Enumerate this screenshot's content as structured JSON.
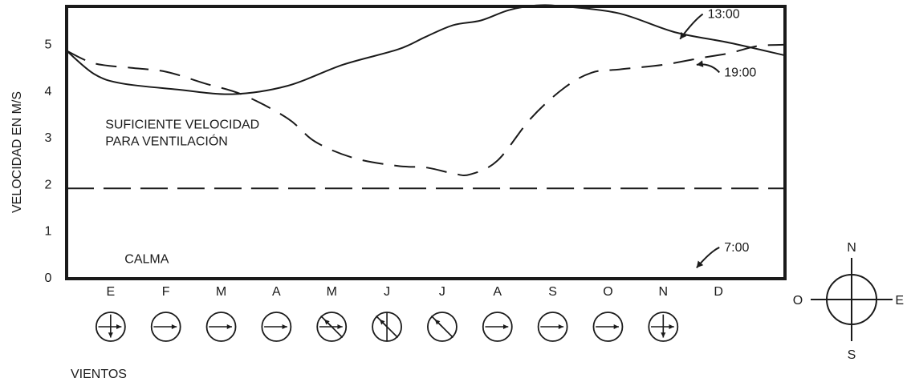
{
  "chart_data": {
    "type": "line",
    "ylabel": "VELOCIDAD EN M/S",
    "ylim": [
      0,
      5.8
    ],
    "yticks": [
      0,
      1,
      2,
      3,
      4,
      5
    ],
    "xlim": [
      0,
      13
    ],
    "categories": [
      "E",
      "F",
      "M",
      "A",
      "M",
      "J",
      "J",
      "A",
      "S",
      "O",
      "N",
      "D"
    ],
    "category_x": [
      1,
      2,
      3,
      4,
      5,
      6,
      7,
      8,
      9,
      10,
      11,
      12
    ],
    "series": [
      {
        "name": "13:00",
        "style": "solid",
        "points": [
          [
            0,
            4.85
          ],
          [
            0.5,
            4.35
          ],
          [
            1,
            4.15
          ],
          [
            2,
            4.02
          ],
          [
            3,
            3.92
          ],
          [
            4,
            4.1
          ],
          [
            5,
            4.55
          ],
          [
            6,
            4.88
          ],
          [
            6.5,
            5.15
          ],
          [
            7,
            5.4
          ],
          [
            7.5,
            5.5
          ],
          [
            8,
            5.72
          ],
          [
            8.5,
            5.82
          ],
          [
            9,
            5.8
          ],
          [
            10,
            5.65
          ],
          [
            11,
            5.25
          ],
          [
            12,
            5.02
          ],
          [
            13,
            4.75
          ]
        ]
      },
      {
        "name": "19:00",
        "style": "dashed",
        "points": [
          [
            0,
            4.85
          ],
          [
            0.5,
            4.58
          ],
          [
            1.2,
            4.48
          ],
          [
            1.8,
            4.4
          ],
          [
            2.5,
            4.15
          ],
          [
            3.2,
            3.9
          ],
          [
            4,
            3.4
          ],
          [
            4.5,
            2.9
          ],
          [
            5.2,
            2.55
          ],
          [
            6,
            2.38
          ],
          [
            6.5,
            2.35
          ],
          [
            7,
            2.22
          ],
          [
            7.3,
            2.2
          ],
          [
            7.8,
            2.5
          ],
          [
            8.4,
            3.4
          ],
          [
            9,
            4.05
          ],
          [
            9.5,
            4.38
          ],
          [
            10,
            4.45
          ],
          [
            10.8,
            4.55
          ],
          [
            11.5,
            4.7
          ],
          [
            12,
            4.8
          ],
          [
            12.5,
            4.95
          ],
          [
            13,
            4.98
          ]
        ]
      },
      {
        "name": "",
        "style": "long-dash",
        "points": [
          [
            0,
            1.9
          ],
          [
            13,
            1.9
          ]
        ]
      }
    ],
    "labels": [
      {
        "text": "13:00",
        "x": 11.6,
        "y": 5.55,
        "arrow_to": [
          11.1,
          5.1
        ]
      },
      {
        "text": "19:00",
        "x": 11.9,
        "y": 4.3,
        "arrow_to": [
          11.4,
          4.55
        ]
      },
      {
        "text": "7:00",
        "x": 11.9,
        "y": 0.55,
        "arrow_to": [
          11.4,
          0.2
        ]
      }
    ],
    "annotations": [
      {
        "text": "SUFICIENTE VELOCIDAD",
        "x": 0.7,
        "y": 3.18
      },
      {
        "text": "PARA VENTILACIÓN",
        "x": 0.7,
        "y": 2.82
      },
      {
        "text": "CALMA",
        "x": 1.05,
        "y": 0.3
      }
    ],
    "winds": {
      "label": "VIENTOS",
      "months": [
        {
          "month": "E",
          "arrows": [
            "E",
            "S"
          ]
        },
        {
          "month": "F",
          "arrows": [
            "E"
          ]
        },
        {
          "month": "M",
          "arrows": [
            "E"
          ]
        },
        {
          "month": "A",
          "arrows": [
            "E"
          ]
        },
        {
          "month": "M",
          "arrows": [
            "E",
            "NW"
          ],
          "line": "NW-SE"
        },
        {
          "month": "J",
          "arrows": [
            "NW"
          ],
          "line": "NW-SE",
          "vertical": true
        },
        {
          "month": "J",
          "arrows": [
            "NW"
          ],
          "line": "NW-SE"
        },
        {
          "month": "A",
          "arrows": [
            "E"
          ]
        },
        {
          "month": "S",
          "arrows": [
            "E"
          ]
        },
        {
          "month": "O",
          "arrows": [
            "E"
          ]
        },
        {
          "month": "N",
          "arrows": [
            "E",
            "S"
          ]
        }
      ]
    },
    "compass": {
      "N": "N",
      "S": "S",
      "E": "E",
      "O": "O"
    }
  }
}
